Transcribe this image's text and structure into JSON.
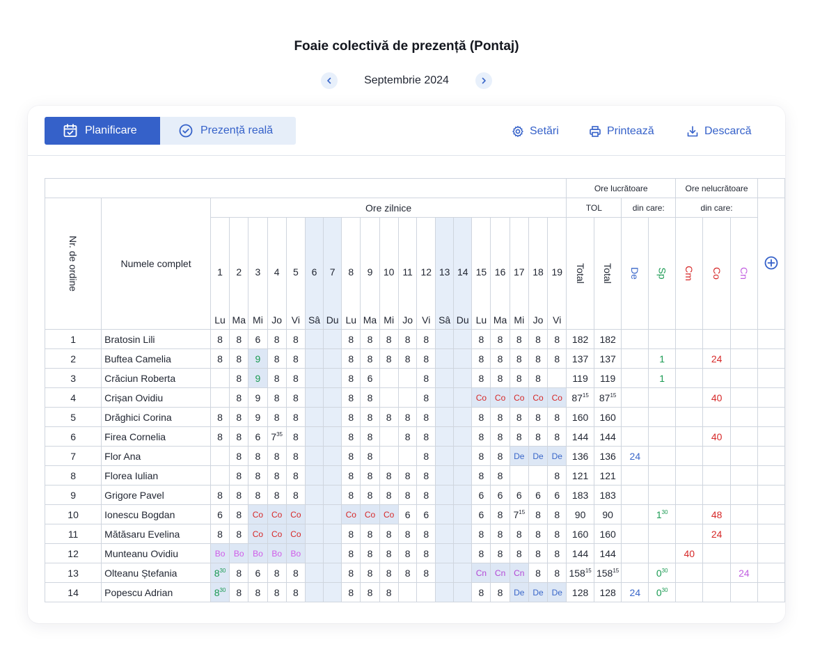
{
  "title": "Foaie colectivă de prezență (Pontaj)",
  "month": "Septembrie 2024",
  "tabs": {
    "plan": "Planificare",
    "real": "Prezență reală"
  },
  "actions": {
    "settings": "Setări",
    "print": "Printează",
    "download": "Descarcă"
  },
  "headers": {
    "ore_lucratoare": "Ore lucrătoare",
    "ore_nelucratoare": "Ore nelucrătoare",
    "tol": "TOL",
    "din_care_1": "din care:",
    "din_care_2": "din care:",
    "ore_zilnice": "Ore zilnice",
    "nr": "Nr. de ordine",
    "name": "Numele complet",
    "total1": "Total",
    "total2": "Total",
    "de": "De",
    "sp": "Sp",
    "cm": "Cm",
    "co": "Co",
    "cn": "Cn"
  },
  "days": [
    {
      "n": "1",
      "w": "Lu"
    },
    {
      "n": "2",
      "w": "Ma"
    },
    {
      "n": "3",
      "w": "Mi"
    },
    {
      "n": "4",
      "w": "Jo"
    },
    {
      "n": "5",
      "w": "Vi"
    },
    {
      "n": "6",
      "w": "Sâ",
      "weekend": true
    },
    {
      "n": "7",
      "w": "Du",
      "weekend": true
    },
    {
      "n": "8",
      "w": "Lu"
    },
    {
      "n": "9",
      "w": "Ma"
    },
    {
      "n": "10",
      "w": "Mi"
    },
    {
      "n": "11",
      "w": "Jo"
    },
    {
      "n": "12",
      "w": "Vi"
    },
    {
      "n": "13",
      "w": "Sâ",
      "weekend": true
    },
    {
      "n": "14",
      "w": "Du",
      "weekend": true
    },
    {
      "n": "15",
      "w": "Lu"
    },
    {
      "n": "16",
      "w": "Ma"
    },
    {
      "n": "17",
      "w": "Mi"
    },
    {
      "n": "18",
      "w": "Jo"
    },
    {
      "n": "19",
      "w": "Vi"
    }
  ],
  "rows": [
    {
      "nr": "1",
      "name": "Bratosin Lili",
      "d": [
        "8",
        "8",
        "6",
        "8",
        "8",
        "",
        "",
        "8",
        "8",
        "8",
        "8",
        "8",
        "",
        "",
        "8",
        "8",
        "8",
        "8",
        "8"
      ],
      "t1": "182",
      "t2": "182",
      "de": "",
      "sp": "",
      "cm": "",
      "co": "",
      "cn": ""
    },
    {
      "nr": "2",
      "name": "Buftea Camelia",
      "d": [
        "8",
        "8",
        "9g",
        "8",
        "8",
        "",
        "",
        "8",
        "8",
        "8",
        "8",
        "8",
        "",
        "",
        "8",
        "8",
        "8",
        "8",
        "8"
      ],
      "t1": "137",
      "t2": "137",
      "de": "",
      "sp": "1",
      "cm": "",
      "co": "24",
      "cn": ""
    },
    {
      "nr": "3",
      "name": "Crăciun Roberta",
      "d": [
        "",
        "8",
        "9g",
        "8",
        "8",
        "",
        "",
        "8",
        "6",
        "",
        "",
        "8",
        "",
        "",
        "8",
        "8",
        "8",
        "8",
        ""
      ],
      "t1": "119",
      "t2": "119",
      "de": "",
      "sp": "1",
      "cm": "",
      "co": "",
      "cn": ""
    },
    {
      "nr": "4",
      "name": "Crișan Ovidiu",
      "d": [
        "",
        "8",
        "9",
        "8",
        "8",
        "",
        "",
        "8",
        "8",
        "",
        "",
        "8",
        "",
        "",
        "Co",
        "Co",
        "Co",
        "Co",
        "Co"
      ],
      "t1": "87^15",
      "t2": "87^15",
      "de": "",
      "sp": "",
      "cm": "",
      "co": "40",
      "cn": ""
    },
    {
      "nr": "5",
      "name": "Drăghici Corina",
      "d": [
        "8",
        "8",
        "9",
        "8",
        "8",
        "",
        "",
        "8",
        "8",
        "8",
        "8",
        "8",
        "",
        "",
        "8",
        "8",
        "8",
        "8",
        "8"
      ],
      "t1": "160",
      "t2": "160",
      "de": "",
      "sp": "",
      "cm": "",
      "co": "",
      "cn": ""
    },
    {
      "nr": "6",
      "name": "Firea Cornelia",
      "d": [
        "8",
        "8",
        "6",
        "7^35",
        "8",
        "",
        "",
        "8",
        "8",
        "",
        "8",
        "8",
        "",
        "",
        "8",
        "8",
        "8",
        "8",
        "8"
      ],
      "t1": "144",
      "t2": "144",
      "de": "",
      "sp": "",
      "cm": "",
      "co": "40",
      "cn": ""
    },
    {
      "nr": "7",
      "name": "Flor Ana",
      "d": [
        "",
        "8",
        "8",
        "8",
        "8",
        "",
        "",
        "8",
        "8",
        "",
        "",
        "8",
        "",
        "",
        "8",
        "8",
        "De",
        "De",
        "De"
      ],
      "t1": "136",
      "t2": "136",
      "de": "24",
      "sp": "",
      "cm": "",
      "co": "",
      "cn": ""
    },
    {
      "nr": "8",
      "name": "Florea Iulian",
      "d": [
        "",
        "8",
        "8",
        "8",
        "8",
        "",
        "",
        "8",
        "8",
        "8",
        "8",
        "8",
        "",
        "",
        "8",
        "8",
        "",
        "",
        "8"
      ],
      "t1": "121",
      "t2": "121",
      "de": "",
      "sp": "",
      "cm": "",
      "co": "",
      "cn": ""
    },
    {
      "nr": "9",
      "name": "Grigore Pavel",
      "d": [
        "8",
        "8",
        "8",
        "8",
        "8",
        "",
        "",
        "8",
        "8",
        "8",
        "8",
        "8",
        "",
        "",
        "6",
        "6",
        "6",
        "6",
        "6"
      ],
      "t1": "183",
      "t2": "183",
      "de": "",
      "sp": "",
      "cm": "",
      "co": "",
      "cn": ""
    },
    {
      "nr": "10",
      "name": "Ionescu Bogdan",
      "d": [
        "6",
        "8",
        "Co",
        "Co",
        "Co",
        "",
        "",
        "Co",
        "Co",
        "Co",
        "6",
        "6",
        "",
        "",
        "6",
        "8",
        "7^15",
        "8",
        "8"
      ],
      "t1": "90",
      "t2": "90",
      "de": "",
      "sp": "1^30",
      "cm": "",
      "co": "48",
      "cn": ""
    },
    {
      "nr": "11",
      "name": "Mătăsaru Evelina",
      "d": [
        "8",
        "8",
        "Co",
        "Co",
        "Co",
        "",
        "",
        "8",
        "8",
        "8",
        "8",
        "8",
        "",
        "",
        "8",
        "8",
        "8",
        "8",
        "8"
      ],
      "t1": "160",
      "t2": "160",
      "de": "",
      "sp": "",
      "cm": "",
      "co": "24",
      "cn": ""
    },
    {
      "nr": "12",
      "name": "Munteanu Ovidiu",
      "d": [
        "Bo",
        "Bo",
        "Bo",
        "Bo",
        "Bo",
        "",
        "",
        "8",
        "8",
        "8",
        "8",
        "8",
        "",
        "",
        "8",
        "8",
        "8",
        "8",
        "8"
      ],
      "t1": "144",
      "t2": "144",
      "de": "",
      "sp": "",
      "cm": "40",
      "co": "",
      "cn": ""
    },
    {
      "nr": "13",
      "name": "Olteanu Ștefania",
      "d": [
        "8^30g",
        "8",
        "6",
        "8",
        "8",
        "",
        "",
        "8",
        "8",
        "8",
        "8",
        "8",
        "",
        "",
        "Cn",
        "Cn",
        "Cn",
        "8",
        "8"
      ],
      "t1": "158^15",
      "t2": "158^15",
      "de": "",
      "sp": "0^30",
      "cm": "",
      "co": "",
      "cn": "24"
    },
    {
      "nr": "14",
      "name": "Popescu Adrian",
      "d": [
        "8^30g",
        "8",
        "8",
        "8",
        "8",
        "",
        "",
        "8",
        "8",
        "8",
        "",
        "",
        "",
        "",
        "8",
        "8",
        "De",
        "De",
        "De"
      ],
      "t1": "128",
      "t2": "128",
      "de": "24",
      "sp": "0^30",
      "cm": "",
      "co": "",
      "cn": ""
    }
  ],
  "icons": {
    "calendar": "calendar-check-icon",
    "check": "check-circle-icon",
    "gear": "gear-icon",
    "printer": "printer-icon",
    "download": "download-icon",
    "plus": "plus-circle-icon",
    "prev": "chevron-left-icon",
    "next": "chevron-right-icon"
  },
  "colors": {
    "primary": "#3561c9",
    "weekend": "#e6eef9",
    "highlight": "#dde7f5",
    "green": "#1a9a52",
    "red": "#d62828",
    "purple": "#c15ee0"
  }
}
